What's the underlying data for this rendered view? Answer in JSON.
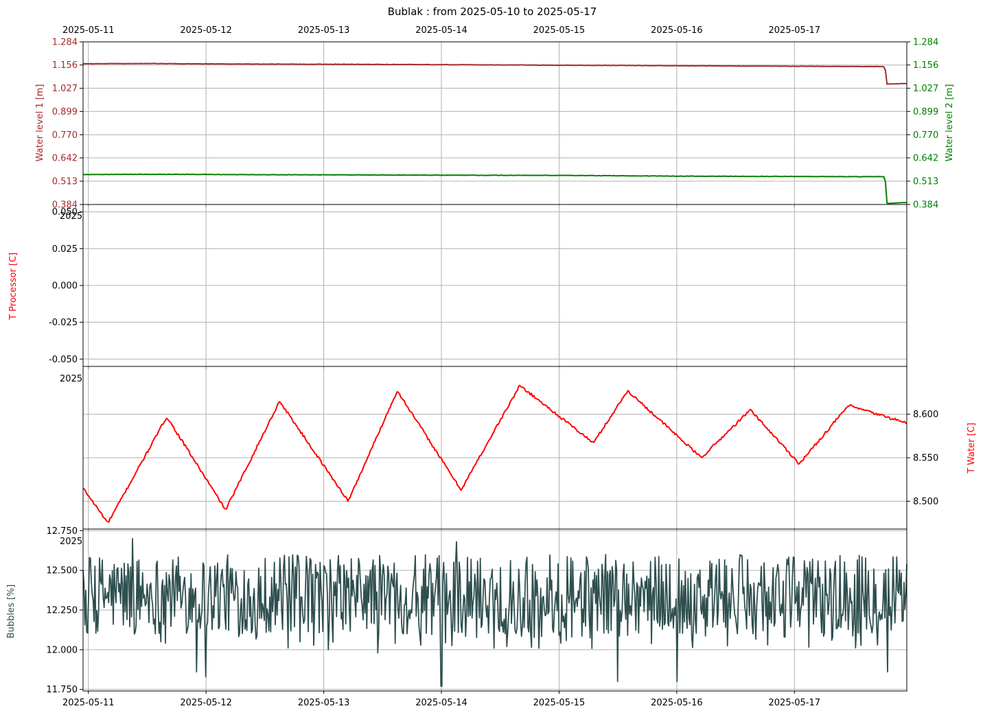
{
  "title": "Bublak : from 2025-05-10 to 2025-05-17",
  "x_axis": {
    "range": [
      "2025-05-10T22:55",
      "2025-05-17T22:55"
    ],
    "tick_labels": [
      "2025-05-11",
      "2025-05-12",
      "2025-05-13",
      "2025-05-14",
      "2025-05-15",
      "2025-05-16",
      "2025-05-17"
    ]
  },
  "stray_labels": [
    "2025",
    "2025",
    "2025"
  ],
  "chart_data": [
    {
      "type": "line",
      "panel": "water-level",
      "ylabel_left": "Water level 1 [m]",
      "ylabel_right": "Water level 2 [m]",
      "ylim": [
        0.384,
        1.284
      ],
      "yticks": [
        "1.284",
        "1.156",
        "1.027",
        "0.899",
        "0.770",
        "0.642",
        "0.513",
        "0.384"
      ],
      "grid": true,
      "series": [
        {
          "color": "#a52a2a",
          "axis": "left",
          "x": [
            "2025-05-10T22:55",
            "2025-05-11T12:00",
            "2025-05-12T00:00",
            "2025-05-13T00:00",
            "2025-05-14T00:00",
            "2025-05-15T00:00",
            "2025-05-16T00:00",
            "2025-05-17T00:00",
            "2025-05-17T18:30",
            "2025-05-17T18:45",
            "2025-05-17T22:55"
          ],
          "values": [
            1.163,
            1.164,
            1.162,
            1.16,
            1.158,
            1.155,
            1.152,
            1.149,
            1.147,
            1.05,
            1.054
          ]
        },
        {
          "color": "#008000",
          "axis": "right",
          "x": [
            "2025-05-10T22:55",
            "2025-05-11T12:00",
            "2025-05-12T00:00",
            "2025-05-13T00:00",
            "2025-05-14T00:00",
            "2025-05-15T00:00",
            "2025-05-16T00:00",
            "2025-05-17T00:00",
            "2025-05-17T18:30",
            "2025-05-17T18:45",
            "2025-05-17T22:55"
          ],
          "values": [
            0.55,
            0.551,
            0.55,
            0.548,
            0.546,
            0.545,
            0.541,
            0.539,
            0.538,
            0.39,
            0.395
          ]
        }
      ]
    },
    {
      "type": "line",
      "panel": "processor",
      "ylabel": "T Processor [C]",
      "ylim": [
        -0.055,
        0.055
      ],
      "yticks": [
        "0.050",
        "0.025",
        "0.000",
        "-0.025",
        "-0.050"
      ],
      "grid": true,
      "series": []
    },
    {
      "type": "line",
      "panel": "water-temp",
      "ylabel": "T Water [C]",
      "ylim": [
        8.468,
        8.655
      ],
      "yticks": [
        "8.600",
        "8.550",
        "8.500"
      ],
      "grid": true,
      "series": [
        {
          "color": "#ff0000",
          "x": [
            "2025-05-10T22:55",
            "2025-05-11T04:00",
            "2025-05-11T16:00",
            "2025-05-12T04:00",
            "2025-05-12T15:00",
            "2025-05-13T05:00",
            "2025-05-13T15:00",
            "2025-05-14T04:00",
            "2025-05-14T16:00",
            "2025-05-15T07:00",
            "2025-05-15T14:00",
            "2025-05-16T05:00",
            "2025-05-16T15:00",
            "2025-05-17T01:00",
            "2025-05-17T11:00",
            "2025-05-17T22:55"
          ],
          "values": [
            8.515,
            8.475,
            8.597,
            8.49,
            8.615,
            8.5,
            8.627,
            8.513,
            8.633,
            8.567,
            8.627,
            8.55,
            8.605,
            8.543,
            8.61,
            8.59
          ]
        }
      ]
    },
    {
      "type": "line",
      "panel": "bubbles",
      "ylabel": "Bubbles [%]",
      "ylim": [
        11.74,
        12.76
      ],
      "yticks": [
        "12.750",
        "12.500",
        "12.250",
        "12.000",
        "11.750"
      ],
      "grid": true,
      "series": [
        {
          "color": "#2f4f4f",
          "x": [
            "2025-05-10T22:55",
            "2025-05-11T09:00",
            "2025-05-11T22:00",
            "2025-05-12T00:00",
            "2025-05-13T01:00",
            "2025-05-13T11:00",
            "2025-05-14T00:00",
            "2025-05-14T03:00",
            "2025-05-15T12:00",
            "2025-05-16T00:00",
            "2025-05-16T22:00",
            "2025-05-17T17:00",
            "2025-05-17T19:00",
            "2025-05-17T22:55"
          ],
          "values": [
            12.5,
            12.7,
            11.86,
            11.83,
            12.0,
            11.98,
            11.77,
            12.68,
            11.8,
            11.8,
            12.08,
            12.03,
            11.86,
            12.54
          ],
          "typical_range": [
            12.1,
            12.6
          ]
        }
      ]
    }
  ]
}
